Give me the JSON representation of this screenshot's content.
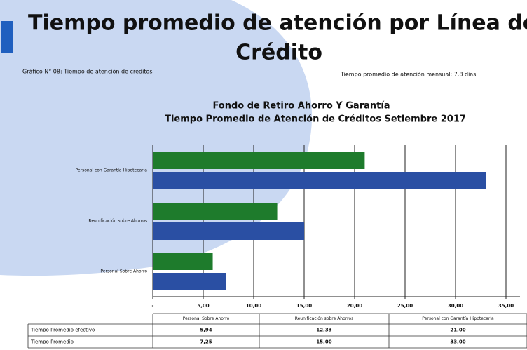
{
  "header": {
    "title_line1": "Tiempo promedio de atención por Línea de",
    "title_line2": "Crédito",
    "left_note": "Gráfico N° 08: Tiempo de atención de créditos",
    "right_note": "Tiempo promedio de atención mensual:  7.8 días"
  },
  "chart_data": {
    "type": "barh",
    "title": "Fondo de Retiro Ahorro Y Garantía",
    "subtitle": "Tiempo Promedio de Atención de Créditos Setiembre 2017",
    "categories": [
      "Personal Sobre Ahorro",
      "Reunificación sobre Ahorros",
      "Personal con Garantía Hipotecaria"
    ],
    "series": [
      {
        "name": "Tiempo Promedio efectivo",
        "color": "#1e7b2c",
        "values": [
          5.94,
          12.33,
          21.0
        ],
        "value_labels": [
          "5,94",
          "12,33",
          "21,00"
        ]
      },
      {
        "name": "Tiempo Promedio",
        "color": "#2a4fa3",
        "values": [
          7.25,
          15.0,
          33.0
        ],
        "value_labels": [
          "7,25",
          "15,00",
          "33,00"
        ]
      }
    ],
    "xlim": [
      0,
      35
    ],
    "xticks": [
      {
        "value": 0,
        "label": "-"
      },
      {
        "value": 5,
        "label": "5,00"
      },
      {
        "value": 10,
        "label": "10,00"
      },
      {
        "value": 15,
        "label": "15,00"
      },
      {
        "value": 20,
        "label": "20,00"
      },
      {
        "value": 25,
        "label": "25,00"
      },
      {
        "value": 30,
        "label": "30,00"
      },
      {
        "value": 35,
        "label": "35,00"
      }
    ],
    "grid": true
  }
}
